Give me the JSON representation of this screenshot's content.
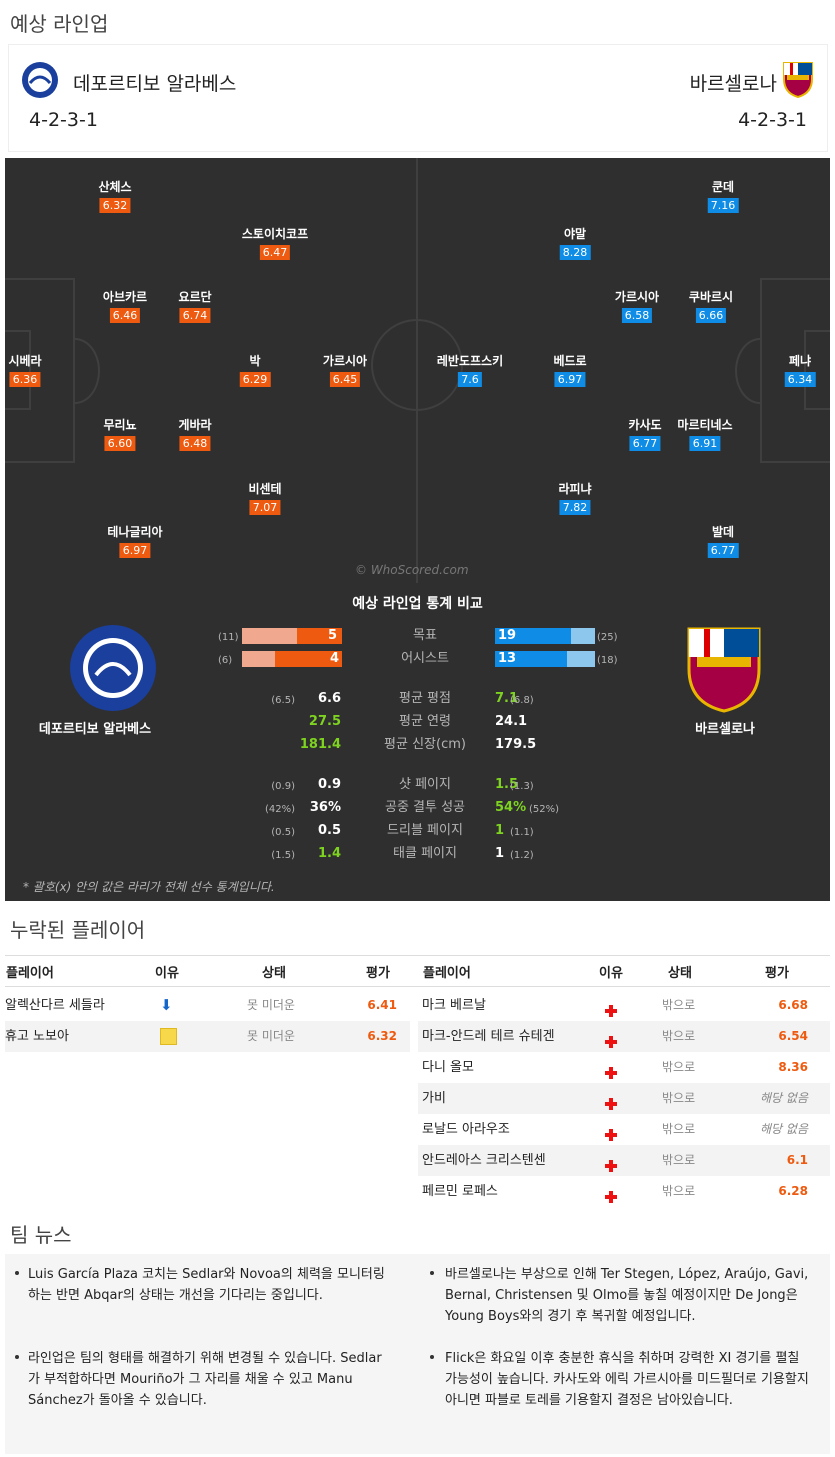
{
  "lineup_title": "예상 라인업",
  "home": {
    "name": "데포르티보 알라베스",
    "formation": "4-2-3-1"
  },
  "away": {
    "name": "바르셀로나",
    "formation": "4-2-3-1"
  },
  "home_players": [
    {
      "name": "산체스",
      "rating": "6.32"
    },
    {
      "name": "스토이치코프",
      "rating": "6.47"
    },
    {
      "name": "아브카르",
      "rating": "6.46"
    },
    {
      "name": "요르단",
      "rating": "6.74"
    },
    {
      "name": "시베라",
      "rating": "6.36"
    },
    {
      "name": "박",
      "rating": "6.29"
    },
    {
      "name": "가르시아",
      "rating": "6.45"
    },
    {
      "name": "무리뇨",
      "rating": "6.60"
    },
    {
      "name": "게바라",
      "rating": "6.48"
    },
    {
      "name": "비센테",
      "rating": "7.07"
    },
    {
      "name": "테나글리아",
      "rating": "6.97"
    }
  ],
  "away_players": [
    {
      "name": "쿤데",
      "rating": "7.16"
    },
    {
      "name": "야말",
      "rating": "8.28"
    },
    {
      "name": "가르시아",
      "rating": "6.58"
    },
    {
      "name": "쿠바르시",
      "rating": "6.66"
    },
    {
      "name": "레반도프스키",
      "rating": "7.6"
    },
    {
      "name": "베드로",
      "rating": "6.97"
    },
    {
      "name": "페냐",
      "rating": "6.34"
    },
    {
      "name": "카사도",
      "rating": "6.77"
    },
    {
      "name": "마르티네스",
      "rating": "6.91"
    },
    {
      "name": "라피냐",
      "rating": "7.82"
    },
    {
      "name": "발데",
      "rating": "6.77"
    }
  ],
  "watermark": "© WhoScored.com",
  "stats": {
    "title": "예상 라인업 통계 비교",
    "home_name": "데포르티보 알라베스",
    "away_name": "바르셀로나",
    "goals": {
      "label": "목표",
      "home": "5",
      "home_league": "(11)",
      "away": "19",
      "away_league": "(25)"
    },
    "assists": {
      "label": "어시스트",
      "home": "4",
      "home_league": "(6)",
      "away": "13",
      "away_league": "(18)"
    },
    "rows": [
      {
        "label": "평균 평점",
        "home": "6.6",
        "home_league": "(6.5)",
        "away": "7.1",
        "away_league": "(6.8)"
      },
      {
        "label": "평균 연령",
        "home": "27.5",
        "home_league": "",
        "away": "24.1",
        "away_league": ""
      },
      {
        "label": "평균 신장(cm)",
        "home": "181.4",
        "home_league": "",
        "away": "179.5",
        "away_league": ""
      },
      {
        "label": "샷 페이지",
        "home": "0.9",
        "home_league": "(0.9)",
        "away": "1.5",
        "away_league": "(1.3)"
      },
      {
        "label": "공중 결투 성공",
        "home": "36%",
        "home_league": "(42%)",
        "away": "54%",
        "away_league": "(52%)"
      },
      {
        "label": "드리블 페이지",
        "home": "0.5",
        "home_league": "(0.5)",
        "away": "1",
        "away_league": "(1.1)"
      },
      {
        "label": "태클 페이지",
        "home": "1.4",
        "home_league": "(1.5)",
        "away": "1",
        "away_league": "(1.2)"
      }
    ],
    "footnote": "* 괄호(x) 안의 값은 라리가 전체 선수 통계입니다."
  },
  "missing": {
    "title": "누락된 플레이어",
    "headers": {
      "player": "플레이어",
      "reason": "이유",
      "status": "상태",
      "rating": "평가"
    },
    "home": [
      {
        "player": "알렉산다르 세들라",
        "status": "못 미더운",
        "rating": "6.41",
        "icon": "arrow-down-icon"
      },
      {
        "player": "휴고 노보아",
        "status": "못 미더운",
        "rating": "6.32",
        "icon": "yellow-cross-icon"
      }
    ],
    "away": [
      {
        "player": "마크 베르날",
        "status": "밖으로",
        "rating": "6.68"
      },
      {
        "player": "마크-안드레 테르 슈테겐",
        "status": "밖으로",
        "rating": "6.54"
      },
      {
        "player": "다니 올모",
        "status": "밖으로",
        "rating": "8.36"
      },
      {
        "player": "가비",
        "status": "밖으로",
        "rating": "해당 없음"
      },
      {
        "player": "로날드 아라우조",
        "status": "밖으로",
        "rating": "해당 없음"
      },
      {
        "player": "안드레아스 크리스텐센",
        "status": "밖으로",
        "rating": "6.1"
      },
      {
        "player": "페르민 로페스",
        "status": "밖으로",
        "rating": "6.28"
      }
    ]
  },
  "news": {
    "title": "팀 뉴스",
    "left": [
      "Luis García Plaza 코치는 Sedlar와 Novoa의 체력을 모니터링하는 반면 Abqar의 상태는 개선을 기다리는 중입니다.",
      "라인업은 팀의 형태를 해결하기 위해 변경될 수 있습니다. Sedlar가 부적합하다면 Mouriño가 그 자리를 채울 수 있고 Manu Sánchez가 돌아올 수 있습니다."
    ],
    "right": [
      "바르셀로나는 부상으로 인해 Ter Stegen, López, Araújo, Gavi, Bernal, Christensen 및 Olmo를 놓칠 예정이지만 De Jong은 Young Boys와의 경기 후 복귀할 예정입니다.",
      "Flick은 화요일 이후 충분한 휴식을 취하며 강력한 XI 경기를 펼칠 가능성이 높습니다. 카사도와 에릭 가르시아를 미드필더로 기용할지 아니면 파블로 토레를 기용할지 결정은 남아있습니다."
    ]
  },
  "colors": {
    "home_rating": "#ee5a0f",
    "away_rating": "#0f8de6",
    "pitch": "#2f2f2f",
    "green": "#7ed321"
  }
}
